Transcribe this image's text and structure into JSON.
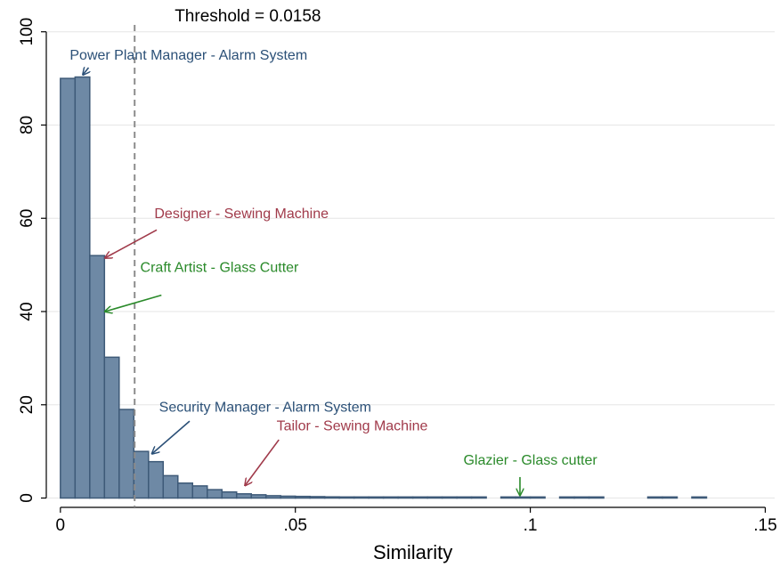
{
  "chart_data": {
    "type": "bar",
    "title": "Threshold = 0.0158",
    "xlabel": "Similarity",
    "ylabel": "",
    "xlim": [
      -0.003,
      0.152
    ],
    "ylim": [
      -2,
      103
    ],
    "x_ticks": [
      {
        "value": 0,
        "label": "0"
      },
      {
        "value": 0.05,
        "label": ".05"
      },
      {
        "value": 0.1,
        "label": ".1"
      },
      {
        "value": 0.15,
        "label": ".15"
      }
    ],
    "y_ticks": [
      {
        "value": 0,
        "label": "0"
      },
      {
        "value": 20,
        "label": "20"
      },
      {
        "value": 40,
        "label": "40"
      },
      {
        "value": 60,
        "label": "60"
      },
      {
        "value": 80,
        "label": "80"
      },
      {
        "value": 100,
        "label": "100"
      }
    ],
    "grid": true,
    "bin_width": 0.003125,
    "bins": [
      {
        "x0": 0.0,
        "value": 90
      },
      {
        "x0": 0.003125,
        "value": 90.3
      },
      {
        "x0": 0.00625,
        "value": 52
      },
      {
        "x0": 0.009375,
        "value": 30.2
      },
      {
        "x0": 0.0125,
        "value": 19
      },
      {
        "x0": 0.015625,
        "value": 10
      },
      {
        "x0": 0.01875,
        "value": 7.8
      },
      {
        "x0": 0.021875,
        "value": 4.8
      },
      {
        "x0": 0.025,
        "value": 3.2
      },
      {
        "x0": 0.028125,
        "value": 2.6
      },
      {
        "x0": 0.03125,
        "value": 1.8
      },
      {
        "x0": 0.034375,
        "value": 1.3
      },
      {
        "x0": 0.0375,
        "value": 0.9
      },
      {
        "x0": 0.040625,
        "value": 0.7
      },
      {
        "x0": 0.04375,
        "value": 0.5
      },
      {
        "x0": 0.046875,
        "value": 0.4
      },
      {
        "x0": 0.05,
        "value": 0.35
      },
      {
        "x0": 0.053125,
        "value": 0.3
      },
      {
        "x0": 0.05625,
        "value": 0.25
      },
      {
        "x0": 0.059375,
        "value": 0.2
      },
      {
        "x0": 0.0625,
        "value": 0.2
      },
      {
        "x0": 0.065625,
        "value": 0.15
      },
      {
        "x0": 0.06875,
        "value": 0.15
      },
      {
        "x0": 0.071875,
        "value": 0.1
      },
      {
        "x0": 0.075,
        "value": 0.1
      },
      {
        "x0": 0.078125,
        "value": 0.1
      },
      {
        "x0": 0.08125,
        "value": 0.1
      },
      {
        "x0": 0.084375,
        "value": 0.1
      },
      {
        "x0": 0.0875,
        "value": 0.08
      },
      {
        "x0": 0.09375,
        "value": 0.08
      },
      {
        "x0": 0.096875,
        "value": 0.08
      },
      {
        "x0": 0.1,
        "value": 0.08
      },
      {
        "x0": 0.10625,
        "value": 0.05
      },
      {
        "x0": 0.109375,
        "value": 0.05
      },
      {
        "x0": 0.1125,
        "value": 0.05
      },
      {
        "x0": 0.125,
        "value": 0.05
      },
      {
        "x0": 0.128125,
        "value": 0.05
      },
      {
        "x0": 0.134375,
        "value": 0.05
      }
    ],
    "threshold": {
      "value": 0.0158,
      "label": "Threshold = 0.0158"
    },
    "annotations": [
      {
        "text": "Power Plant Manager - Alarm System",
        "color": "#2b5077",
        "text_at": [
          0.002,
          94
        ],
        "text_anchor": "start",
        "arrow_from": [
          0.006,
          92.3
        ],
        "arrow_to": [
          0.0048,
          90.8
        ]
      },
      {
        "text": "Designer - Sewing Machine",
        "color": "#a03a4a",
        "text_at": [
          0.02,
          60
        ],
        "text_anchor": "start",
        "arrow_from": [
          0.0205,
          57.5
        ],
        "arrow_to": [
          0.0095,
          51.5
        ]
      },
      {
        "text": "Craft Artist - Glass Cutter",
        "color": "#2a8a2a",
        "text_at": [
          0.017,
          48.5
        ],
        "text_anchor": "start",
        "arrow_from": [
          0.0215,
          43.5
        ],
        "arrow_to": [
          0.0095,
          40
        ]
      },
      {
        "text": "Security Manager - Alarm System",
        "color": "#2b5077",
        "text_at": [
          0.021,
          18.5
        ],
        "text_anchor": "start",
        "arrow_from": [
          0.0275,
          16.5
        ],
        "arrow_to": [
          0.0195,
          9.5
        ]
      },
      {
        "text": "Tailor - Sewing Machine",
        "color": "#a03a4a",
        "text_at": [
          0.046,
          14.5
        ],
        "text_anchor": "start",
        "arrow_from": [
          0.0465,
          12.5
        ],
        "arrow_to": [
          0.0393,
          2.7
        ]
      },
      {
        "text": "Glazier - Glass cutter",
        "color": "#2a8a2a",
        "text_at": [
          0.1,
          7.2
        ],
        "text_anchor": "middle",
        "arrow_from": [
          0.0978,
          4.5
        ],
        "arrow_to": [
          0.0978,
          0.6
        ]
      }
    ],
    "colors": {
      "bar_fill": "#6e89a5",
      "bar_stroke": "#3e5a78",
      "threshold_line": "#8c8c8c"
    }
  }
}
